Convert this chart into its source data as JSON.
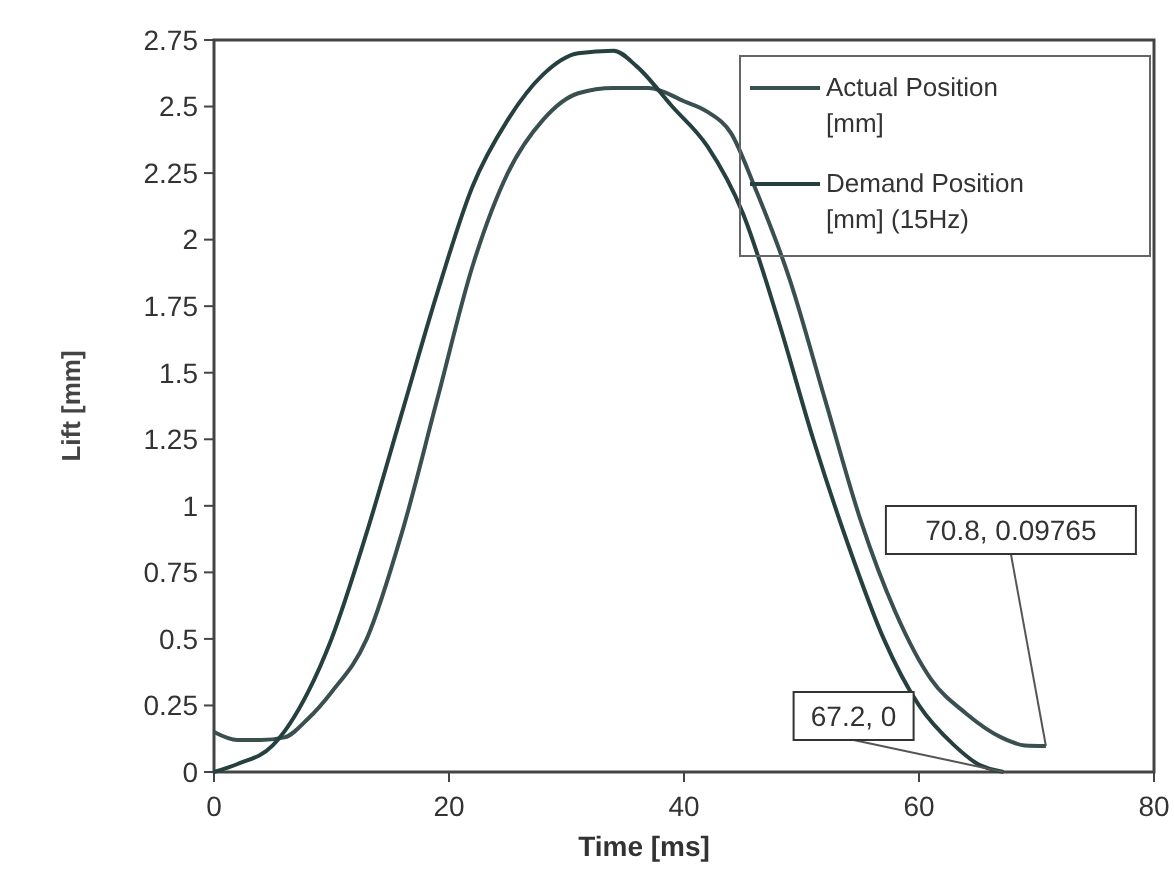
{
  "chart_data": {
    "type": "line",
    "xlabel": "Time [ms]",
    "ylabel": "Lift [mm]",
    "xlim": [
      0,
      80
    ],
    "xticks": [
      0,
      20,
      40,
      60,
      80
    ],
    "ylim": [
      0,
      2.75
    ],
    "yticks": [
      0,
      0.25,
      0.5,
      0.75,
      1,
      1.25,
      1.5,
      1.75,
      2,
      2.25,
      2.5,
      2.75
    ],
    "grid": false,
    "legend": "top right",
    "marker": "none",
    "line_style": "solid",
    "series": [
      {
        "name": "Actual Position [mm]",
        "color": "#3a4f50",
        "x": [
          0,
          2,
          4,
          6,
          8,
          10,
          13,
          16,
          19,
          22,
          25,
          28,
          31,
          34,
          37,
          40,
          42,
          44,
          46,
          49,
          52,
          55,
          58,
          61,
          64,
          67,
          69,
          70.8
        ],
        "values": [
          0.15,
          0.12,
          0.12,
          0.13,
          0.2,
          0.3,
          0.5,
          0.9,
          1.4,
          1.9,
          2.25,
          2.45,
          2.55,
          2.57,
          2.57,
          2.52,
          2.48,
          2.4,
          2.2,
          1.85,
          1.4,
          0.95,
          0.6,
          0.35,
          0.22,
          0.13,
          0.1,
          0.09765
        ]
      },
      {
        "name": "Demand Position [mm] (15Hz)",
        "color": "#26403f",
        "x": [
          0,
          2,
          5,
          8,
          10,
          13,
          16,
          19,
          22,
          25,
          28,
          31,
          34,
          36,
          39,
          42,
          45,
          48,
          51,
          54,
          57,
          60,
          63,
          65,
          67.2
        ],
        "values": [
          0,
          0.03,
          0.1,
          0.3,
          0.5,
          0.9,
          1.35,
          1.8,
          2.2,
          2.45,
          2.62,
          2.7,
          2.71,
          2.65,
          2.5,
          2.35,
          2.1,
          1.7,
          1.25,
          0.85,
          0.5,
          0.25,
          0.1,
          0.03,
          0
        ]
      }
    ],
    "annotations": [
      {
        "text": "67.2, 0",
        "x": 67.2,
        "y": 0
      },
      {
        "text": "70.8, 0.09765",
        "x": 70.8,
        "y": 0.09765
      }
    ]
  }
}
